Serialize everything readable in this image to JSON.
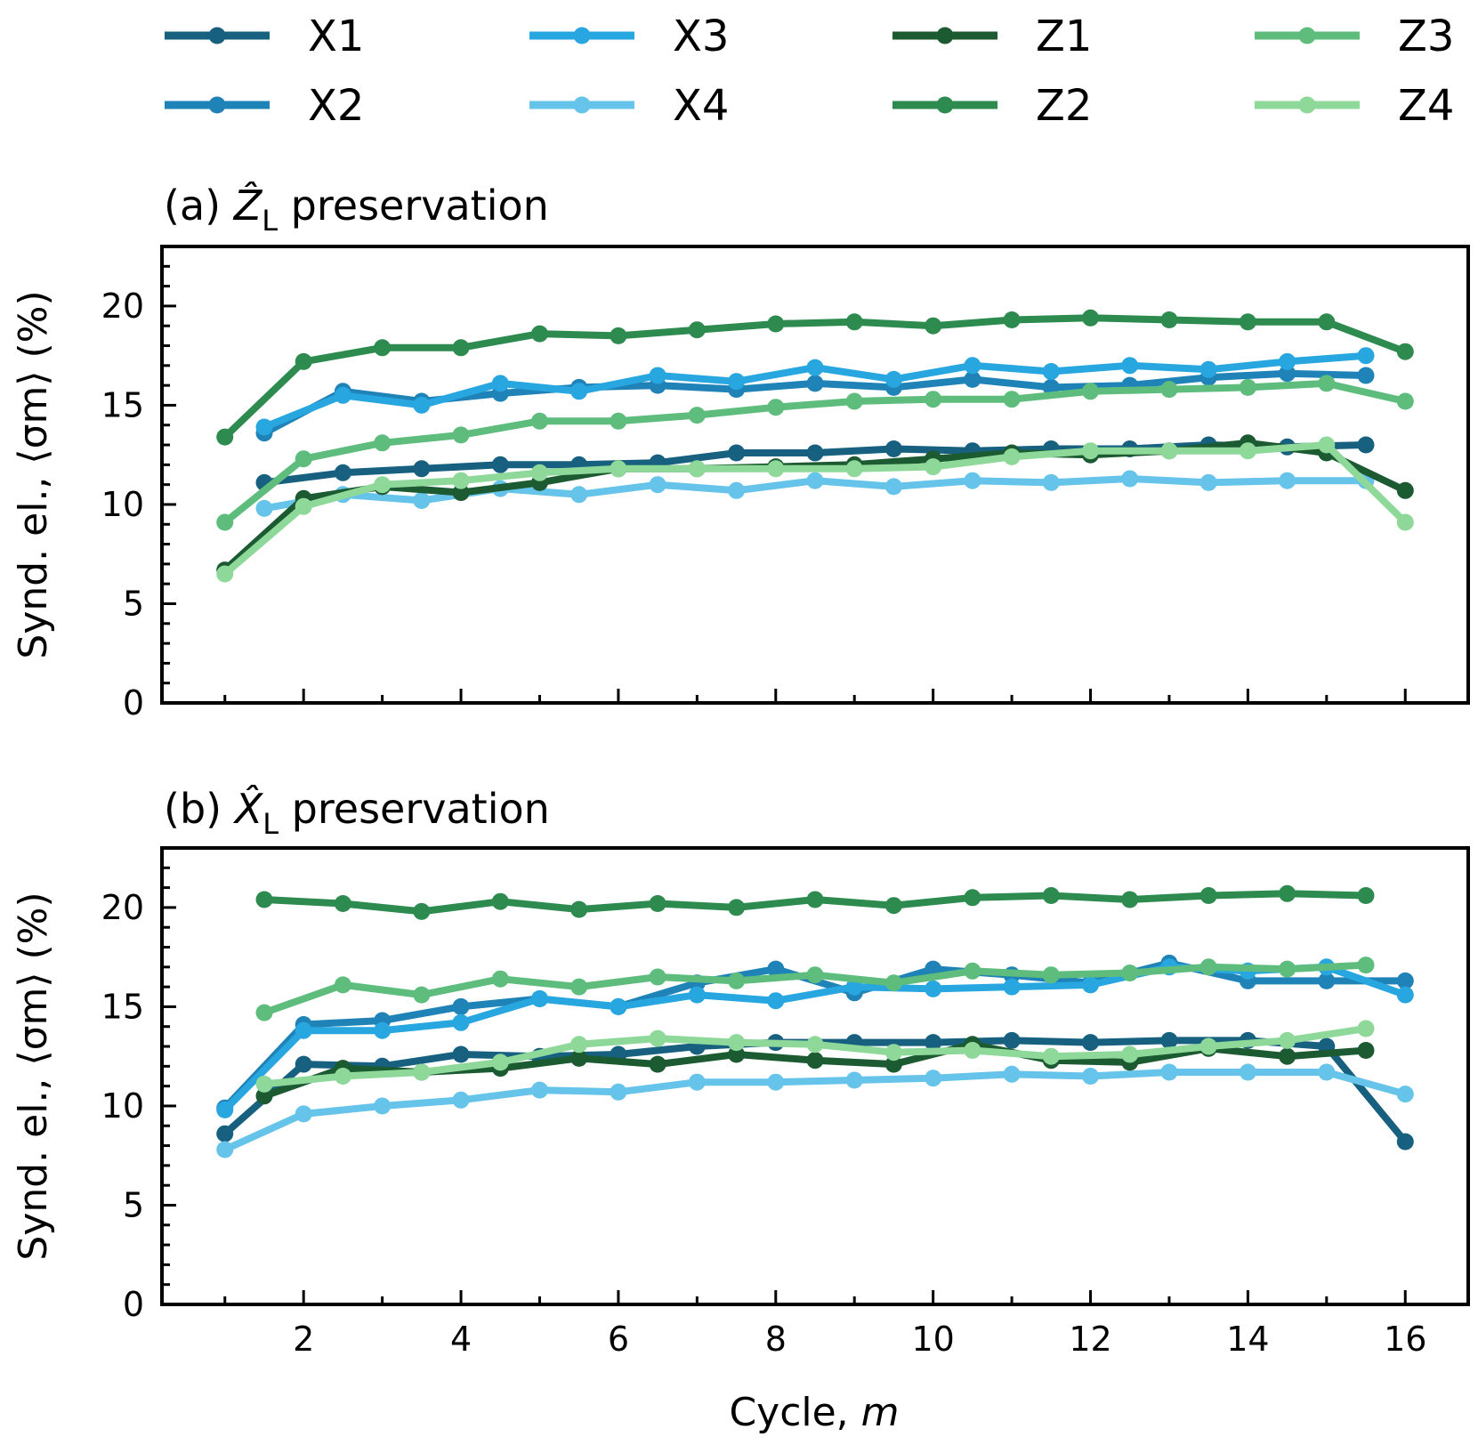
{
  "legend": {
    "entries": [
      {
        "name": "X1",
        "color": "#17607f"
      },
      {
        "name": "X2",
        "color": "#1f83b7"
      },
      {
        "name": "X3",
        "color": "#28a6e0"
      },
      {
        "name": "X4",
        "color": "#66c3ea"
      },
      {
        "name": "Z1",
        "color": "#1c5a32"
      },
      {
        "name": "Z2",
        "color": "#2e8b4f"
      },
      {
        "name": "Z3",
        "color": "#5ebd7d"
      },
      {
        "name": "Z4",
        "color": "#8ed99a"
      }
    ]
  },
  "axes": {
    "xlabel": "Cycle, m",
    "xlabel_parts": {
      "text": "Cycle, ",
      "var": "m"
    },
    "ylabel": "Synd. el., ⟨σm⟩ (%)",
    "xlim": [
      0.2,
      16.8
    ],
    "ylim": [
      0,
      23
    ],
    "xticks": [
      2,
      4,
      6,
      8,
      10,
      12,
      14,
      16
    ],
    "yticks": [
      0,
      5,
      10,
      15,
      20
    ]
  },
  "chart_data": [
    {
      "id": "a",
      "type": "line",
      "title": "(a) Ẑ_L preservation",
      "title_parts": {
        "prefix": "(a) ",
        "var": "Ẑ",
        "sub": "L",
        "suffix": " preservation"
      },
      "xlabel": "Cycle, m",
      "ylabel": "Synd. el., ⟨σm⟩ (%)",
      "xlim": [
        0.2,
        16.8
      ],
      "ylim": [
        0,
        23
      ],
      "series": [
        {
          "name": "X1",
          "x": [
            1.5,
            2.5,
            3.5,
            4.5,
            5.5,
            6.5,
            7.5,
            8.5,
            9.5,
            10.5,
            11.5,
            12.5,
            13.5,
            14.5,
            15.5
          ],
          "values": [
            11.1,
            11.6,
            11.8,
            12.0,
            12.0,
            12.1,
            12.6,
            12.6,
            12.8,
            12.7,
            12.8,
            12.8,
            13.0,
            12.9,
            13.0
          ]
        },
        {
          "name": "X2",
          "x": [
            1.5,
            2.5,
            3.5,
            4.5,
            5.5,
            6.5,
            7.5,
            8.5,
            9.5,
            10.5,
            11.5,
            12.5,
            13.5,
            14.5,
            15.5
          ],
          "values": [
            13.6,
            15.7,
            15.2,
            15.6,
            15.9,
            16.0,
            15.8,
            16.1,
            15.9,
            16.3,
            15.9,
            16.0,
            16.4,
            16.6,
            16.5
          ]
        },
        {
          "name": "X3",
          "x": [
            1.5,
            2.5,
            3.5,
            4.5,
            5.5,
            6.5,
            7.5,
            8.5,
            9.5,
            10.5,
            11.5,
            12.5,
            13.5,
            14.5,
            15.5
          ],
          "values": [
            13.9,
            15.5,
            15.0,
            16.1,
            15.7,
            16.5,
            16.2,
            16.9,
            16.3,
            17.0,
            16.7,
            17.0,
            16.8,
            17.2,
            17.5
          ]
        },
        {
          "name": "X4",
          "x": [
            1.5,
            2.5,
            3.5,
            4.5,
            5.5,
            6.5,
            7.5,
            8.5,
            9.5,
            10.5,
            11.5,
            12.5,
            13.5,
            14.5,
            15.5
          ],
          "values": [
            9.8,
            10.5,
            10.2,
            10.8,
            10.5,
            11.0,
            10.7,
            11.2,
            10.9,
            11.2,
            11.1,
            11.3,
            11.1,
            11.2,
            11.2
          ]
        },
        {
          "name": "Z1",
          "x": [
            1,
            2,
            3,
            4,
            5,
            6,
            7,
            8,
            9,
            10,
            11,
            12,
            13,
            14,
            15,
            16
          ],
          "values": [
            6.7,
            10.3,
            10.9,
            10.6,
            11.1,
            11.8,
            11.8,
            11.9,
            12.0,
            12.3,
            12.6,
            12.5,
            12.7,
            13.1,
            12.6,
            10.7
          ]
        },
        {
          "name": "Z2",
          "x": [
            1,
            2,
            3,
            4,
            5,
            6,
            7,
            8,
            9,
            10,
            11,
            12,
            13,
            14,
            15,
            16
          ],
          "values": [
            13.4,
            17.2,
            17.9,
            17.9,
            18.6,
            18.5,
            18.8,
            19.1,
            19.2,
            19.0,
            19.3,
            19.4,
            19.3,
            19.2,
            19.2,
            17.7
          ]
        },
        {
          "name": "Z3",
          "x": [
            1,
            2,
            3,
            4,
            5,
            6,
            7,
            8,
            9,
            10,
            11,
            12,
            13,
            14,
            15,
            16
          ],
          "values": [
            9.1,
            12.3,
            13.1,
            13.5,
            14.2,
            14.2,
            14.5,
            14.9,
            15.2,
            15.3,
            15.3,
            15.7,
            15.8,
            15.9,
            16.1,
            15.2
          ]
        },
        {
          "name": "Z4",
          "x": [
            1,
            2,
            3,
            4,
            5,
            6,
            7,
            8,
            9,
            10,
            11,
            12,
            13,
            14,
            15,
            16
          ],
          "values": [
            6.5,
            9.9,
            11.0,
            11.2,
            11.6,
            11.8,
            11.8,
            11.8,
            11.8,
            11.9,
            12.4,
            12.7,
            12.7,
            12.7,
            13.0,
            9.1
          ]
        }
      ]
    },
    {
      "id": "b",
      "type": "line",
      "title": "(b) X̂_L preservation",
      "title_parts": {
        "prefix": "(b) ",
        "var": "X̂",
        "sub": "L",
        "suffix": " preservation"
      },
      "xlabel": "Cycle, m",
      "ylabel": "Synd. el., ⟨σm⟩ (%)",
      "xlim": [
        0.2,
        16.8
      ],
      "ylim": [
        0,
        23
      ],
      "series": [
        {
          "name": "X1",
          "x": [
            1,
            2,
            3,
            4,
            5,
            6,
            7,
            8,
            9,
            10,
            11,
            12,
            13,
            14,
            15,
            16
          ],
          "values": [
            8.6,
            12.1,
            12.0,
            12.6,
            12.5,
            12.6,
            13.0,
            13.2,
            13.2,
            13.2,
            13.3,
            13.2,
            13.3,
            13.3,
            13.0,
            8.2
          ]
        },
        {
          "name": "X2",
          "x": [
            1,
            2,
            3,
            4,
            5,
            6,
            7,
            8,
            9,
            10,
            11,
            12,
            13,
            14,
            15,
            16
          ],
          "values": [
            9.9,
            14.1,
            14.3,
            15.0,
            15.4,
            15.0,
            16.2,
            16.9,
            15.7,
            16.9,
            16.6,
            16.2,
            17.2,
            16.3,
            16.3,
            16.3
          ]
        },
        {
          "name": "X3",
          "x": [
            1,
            2,
            3,
            4,
            5,
            6,
            7,
            8,
            9,
            10,
            11,
            12,
            13,
            14,
            15,
            16
          ],
          "values": [
            9.8,
            13.8,
            13.8,
            14.2,
            15.4,
            15.0,
            15.6,
            15.3,
            16.0,
            15.9,
            16.0,
            16.1,
            17.0,
            16.8,
            17.0,
            15.6
          ]
        },
        {
          "name": "X4",
          "x": [
            1,
            2,
            3,
            4,
            5,
            6,
            7,
            8,
            9,
            10,
            11,
            12,
            13,
            14,
            15,
            16
          ],
          "values": [
            7.8,
            9.6,
            10.0,
            10.3,
            10.8,
            10.7,
            11.2,
            11.2,
            11.3,
            11.4,
            11.6,
            11.5,
            11.7,
            11.7,
            11.7,
            10.6
          ]
        },
        {
          "name": "Z1",
          "x": [
            1.5,
            2.5,
            3.5,
            4.5,
            5.5,
            6.5,
            7.5,
            8.5,
            9.5,
            10.5,
            11.5,
            12.5,
            13.5,
            14.5,
            15.5
          ],
          "values": [
            10.5,
            11.9,
            11.7,
            11.9,
            12.4,
            12.1,
            12.6,
            12.3,
            12.1,
            13.1,
            12.3,
            12.2,
            12.9,
            12.5,
            12.8
          ]
        },
        {
          "name": "Z2",
          "x": [
            1.5,
            2.5,
            3.5,
            4.5,
            5.5,
            6.5,
            7.5,
            8.5,
            9.5,
            10.5,
            11.5,
            12.5,
            13.5,
            14.5,
            15.5
          ],
          "values": [
            20.4,
            20.2,
            19.8,
            20.3,
            19.9,
            20.2,
            20.0,
            20.4,
            20.1,
            20.5,
            20.6,
            20.4,
            20.6,
            20.7,
            20.6
          ]
        },
        {
          "name": "Z3",
          "x": [
            1.5,
            2.5,
            3.5,
            4.5,
            5.5,
            6.5,
            7.5,
            8.5,
            9.5,
            10.5,
            11.5,
            12.5,
            13.5,
            14.5,
            15.5
          ],
          "values": [
            14.7,
            16.1,
            15.6,
            16.4,
            16.0,
            16.5,
            16.3,
            16.6,
            16.2,
            16.8,
            16.6,
            16.7,
            17.0,
            16.9,
            17.1
          ]
        },
        {
          "name": "Z4",
          "x": [
            1.5,
            2.5,
            3.5,
            4.5,
            5.5,
            6.5,
            7.5,
            8.5,
            9.5,
            10.5,
            11.5,
            12.5,
            13.5,
            14.5,
            15.5
          ],
          "values": [
            11.1,
            11.5,
            11.7,
            12.2,
            13.1,
            13.4,
            13.2,
            13.1,
            12.7,
            12.8,
            12.5,
            12.6,
            13.0,
            13.3,
            13.9
          ]
        }
      ]
    }
  ]
}
